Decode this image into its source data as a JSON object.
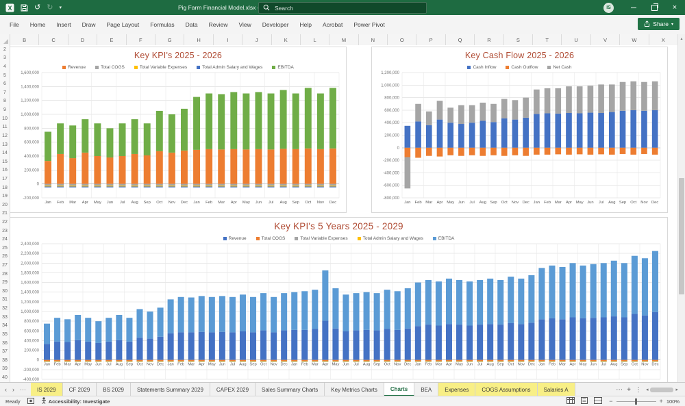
{
  "titlebar": {
    "title": "Pig Farm Financial Model.xlsx  -  Excel",
    "search_placeholder": "Search",
    "avatar_initials": "IS"
  },
  "ribbon": {
    "tabs": [
      "File",
      "Home",
      "Insert",
      "Draw",
      "Page Layout",
      "Formulas",
      "Data",
      "Review",
      "View",
      "Developer",
      "Help",
      "Acrobat",
      "Power Pivot"
    ],
    "share_label": "Share"
  },
  "grid": {
    "columns_first": "B",
    "columns_last": "X",
    "rows_first": 2,
    "rows_last": 40
  },
  "colors": {
    "titlebar_green": "#1E6B41",
    "accent_green": "#217346",
    "chart_title": "#AF4A32",
    "tab_yellow": "#F8EF86"
  },
  "chart_data": [
    {
      "type": "bar",
      "stacked": true,
      "title": "Key KPI's 2025 - 2026",
      "x_months": [
        "Jan",
        "Feb",
        "Mar",
        "Apr",
        "May",
        "Jun",
        "Jul",
        "Aug",
        "Sep",
        "Oct",
        "Nov",
        "Dec"
      ],
      "x_repeat": 2,
      "y_min": -200000,
      "y_max": 1600000,
      "y_step": 200000,
      "unit": 1000,
      "grid": true,
      "legend_position": "top",
      "series": [
        {
          "name": "Revenue",
          "color": "#ED7D31",
          "values": [
            330,
            430,
            370,
            450,
            400,
            380,
            400,
            430,
            410,
            470,
            450,
            480,
            490,
            500,
            495,
            500,
            495,
            500,
            495,
            505,
            500,
            510,
            500,
            510
          ]
        },
        {
          "name": "Total COGS",
          "color": "#A5A5A5",
          "values_const": -25
        },
        {
          "name": "Total Variable Expenses",
          "color": "#FFC000",
          "values_const": -12
        },
        {
          "name": "Total Admin Salary and Wages",
          "color": "#4472C4",
          "values_const": -12
        },
        {
          "name": "EBITDA",
          "color": "#70AD47",
          "values": [
            420,
            440,
            470,
            480,
            470,
            420,
            470,
            500,
            460,
            580,
            550,
            600,
            760,
            800,
            795,
            820,
            805,
            820,
            805,
            845,
            800,
            870,
            800,
            870
          ]
        }
      ]
    },
    {
      "type": "bar",
      "stacked": true,
      "title": "Key Cash Flow 2025 - 2026",
      "x_months": [
        "Jan",
        "Feb",
        "Mar",
        "Apr",
        "May",
        "Jun",
        "Jul",
        "Aug",
        "Sep",
        "Oct",
        "Nov",
        "Dec"
      ],
      "x_repeat": 2,
      "y_min": -800000,
      "y_max": 1200000,
      "y_step": 200000,
      "unit": 1000,
      "grid": true,
      "legend_position": "top",
      "series": [
        {
          "name": "Cash Inflow",
          "color": "#4472C4",
          "values": [
            350,
            420,
            360,
            450,
            400,
            380,
            400,
            430,
            410,
            470,
            450,
            480,
            540,
            550,
            545,
            555,
            550,
            560,
            555,
            570,
            590,
            600,
            590,
            600
          ]
        },
        {
          "name": "Cash Outflow",
          "color": "#ED7D31",
          "values": [
            -150,
            -160,
            -130,
            -140,
            -120,
            -130,
            -120,
            -130,
            -120,
            -130,
            -120,
            -130,
            -110,
            -110,
            -105,
            -110,
            -105,
            -110,
            -105,
            -110,
            -100,
            -110,
            -100,
            -110
          ]
        },
        {
          "name": "Net Cash",
          "color": "#A5A5A5",
          "values": [
            -500,
            280,
            220,
            300,
            240,
            300,
            280,
            290,
            290,
            310,
            310,
            320,
            390,
            400,
            405,
            425,
            430,
            430,
            455,
            440,
            460,
            460,
            460,
            460
          ]
        }
      ]
    },
    {
      "type": "bar",
      "stacked": true,
      "title": "Key KPI's 5 Years 2025 - 2029",
      "x_months": [
        "Jan",
        "Feb",
        "Mar",
        "Apr",
        "May",
        "Jun",
        "Jul",
        "Aug",
        "Sep",
        "Oct",
        "Nov",
        "Dec"
      ],
      "x_repeat": 5,
      "y_min": -400000,
      "y_max": 2400000,
      "y_step": 200000,
      "unit": 1000,
      "grid": true,
      "legend_position": "top",
      "series": [
        {
          "name": "Revenue",
          "color": "#4472C4",
          "values": [
            330,
            380,
            370,
            410,
            380,
            350,
            380,
            410,
            380,
            460,
            440,
            480,
            550,
            570,
            570,
            580,
            570,
            580,
            570,
            590,
            570,
            610,
            570,
            610,
            620,
            620,
            640,
            810,
            650,
            590,
            610,
            620,
            610,
            640,
            620,
            650,
            700,
            730,
            710,
            740,
            730,
            710,
            730,
            740,
            730,
            760,
            740,
            770,
            840,
            860,
            840,
            880,
            860,
            870,
            880,
            900,
            880,
            950,
            920,
            990
          ]
        },
        {
          "name": "Total COGS",
          "color": "#ED7D31",
          "values_const": -20
        },
        {
          "name": "Total Variable Expenses",
          "color": "#A5A5A5",
          "values_const": -15
        },
        {
          "name": "Total Admin Salary and Wages",
          "color": "#FFC000",
          "values_const": -10
        },
        {
          "name": "EBITDA",
          "color": "#5B9BD5",
          "values": [
            420,
            490,
            470,
            520,
            490,
            450,
            490,
            520,
            490,
            590,
            560,
            600,
            700,
            730,
            720,
            740,
            730,
            740,
            730,
            760,
            730,
            770,
            730,
            770,
            780,
            800,
            810,
            1040,
            830,
            760,
            770,
            780,
            770,
            810,
            800,
            830,
            900,
            920,
            910,
            940,
            920,
            910,
            920,
            940,
            920,
            960,
            940,
            980,
            1060,
            1090,
            1080,
            1120,
            1090,
            1110,
            1120,
            1150,
            1120,
            1200,
            1180,
            1260
          ]
        }
      ]
    }
  ],
  "sheet_tabs": {
    "nav_left": "‹",
    "nav_right": "›",
    "nav_more": "⋯",
    "tabs": [
      {
        "label": "IS 2029",
        "style": "yellow"
      },
      {
        "label": "CF 2029",
        "style": "normal"
      },
      {
        "label": "BS 2029",
        "style": "normal"
      },
      {
        "label": "Statements Summary 2029",
        "style": "normal"
      },
      {
        "label": "CAPEX 2029",
        "style": "normal"
      },
      {
        "label": "Sales Summary Charts",
        "style": "normal"
      },
      {
        "label": "Key Metrics Charts",
        "style": "normal"
      },
      {
        "label": "Charts",
        "style": "active"
      },
      {
        "label": "BEA",
        "style": "normal"
      },
      {
        "label": "Expenses",
        "style": "yellow"
      },
      {
        "label": "COGS Assumptions",
        "style": "yellow"
      },
      {
        "label": "Salaries A",
        "style": "yellow"
      }
    ],
    "overflow": "⋯",
    "new_sheet": "+",
    "options": "⋮"
  },
  "status_bar": {
    "ready": "Ready",
    "accessibility": "Accessibility: Investigate",
    "zoom": "100%"
  }
}
